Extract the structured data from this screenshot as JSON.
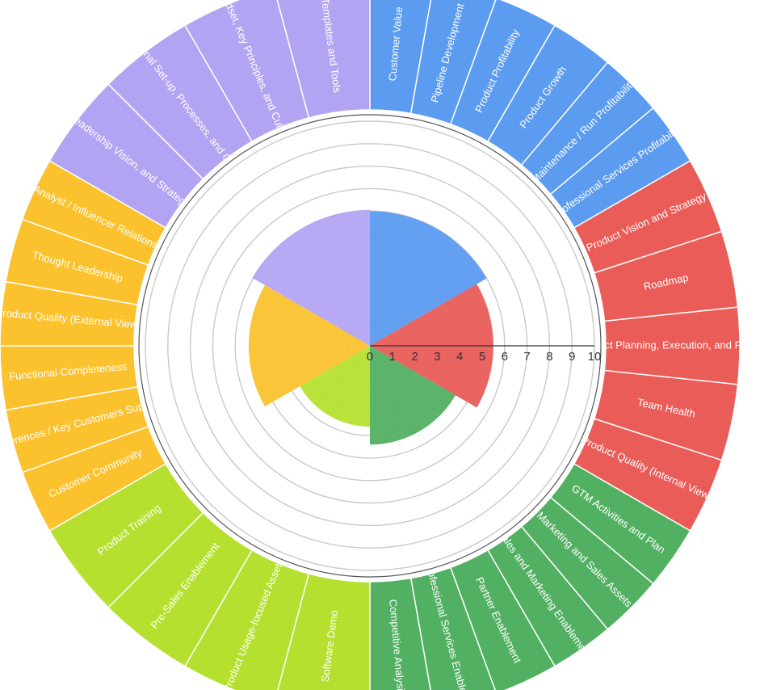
{
  "chart_data": {
    "type": "polar-area",
    "radial_axis": {
      "min": 0,
      "max": 10,
      "ticks": [
        "0",
        "1",
        "2",
        "3",
        "4",
        "5",
        "6",
        "7",
        "8",
        "9",
        "10"
      ]
    },
    "categories": [
      {
        "name": "blue",
        "color": "#5B9BF0",
        "value": 6.0,
        "labels": [
          "Customer Value",
          "Pipeline Development",
          "Product Profitability",
          "Product Growth",
          "Maintenance / Run Profitability",
          "Professional Services Profitability"
        ]
      },
      {
        "name": "red",
        "color": "#E95C58",
        "value": 5.5,
        "labels": [
          "Product Vision and Strategy",
          "Roadmap",
          "Product Planning, Execution, and Review",
          "Team Health",
          "Product Quality (Internal View)"
        ]
      },
      {
        "name": "green",
        "color": "#52B062",
        "value": 4.4,
        "labels": [
          "GTM Activities and Plan",
          "Marketing and Sales Assets",
          "Sales and Marketing Enablement",
          "Partner Enablement",
          "Professional Services Enablement",
          "Competitive Analysis"
        ]
      },
      {
        "name": "lime",
        "color": "#B5E02F",
        "value": 3.6,
        "labels": [
          "Software Demo",
          "Product Usage-focused Assets",
          "Pre-Sales Enablement",
          "Product Training"
        ]
      },
      {
        "name": "yellow",
        "color": "#FBC22E",
        "value": 5.4,
        "labels": [
          "Customer Community",
          "References / Key Customers Support",
          "Functional Completeness",
          "Product Quality (External View)",
          "Thought Leadership",
          "Analyst / Influencer Relations"
        ]
      },
      {
        "name": "purple",
        "color": "#B3A4F3",
        "value": 6.05,
        "labels": [
          "Leadership Vision, and Strategy",
          "Organizational Set-up, Processes, and Governance",
          "Mindset, Key Principles, and Culture",
          "Templates and Tools"
        ]
      }
    ]
  }
}
